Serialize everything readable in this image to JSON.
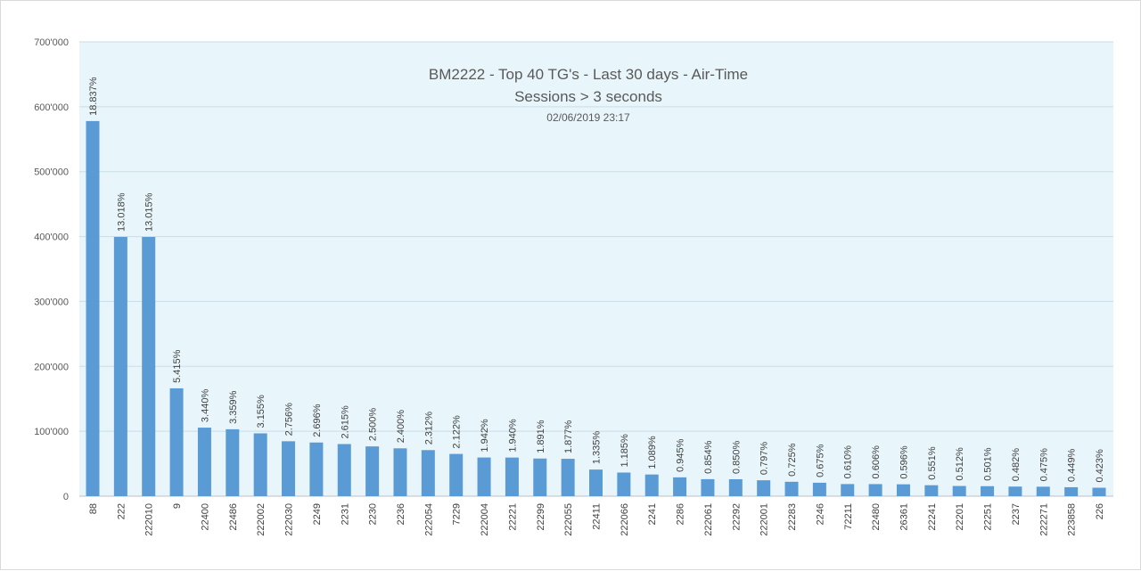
{
  "chart_data": {
    "type": "bar",
    "title": "BM2222 - Top 40 TG's - Last 30 days - Air-Time",
    "subtitle": "Sessions > 3 seconds",
    "timestamp": "02/06/2019 23:17",
    "xlabel": "",
    "ylabel": "",
    "ylim": [
      0,
      700000
    ],
    "yticks": [
      0,
      100000,
      200000,
      300000,
      400000,
      500000,
      600000,
      700000
    ],
    "ytick_labels": [
      "0",
      "100'000",
      "200'000",
      "300'000",
      "400'000",
      "500'000",
      "600'000",
      "700'000"
    ],
    "grid": true,
    "legend": "none",
    "bar_color": "#5b9bd5",
    "plot_background": "#e8f6fb",
    "categories": [
      "88",
      "222",
      "222010",
      "9",
      "22400",
      "22486",
      "222002",
      "222030",
      "2249",
      "2231",
      "2230",
      "2236",
      "222054",
      "7229",
      "222004",
      "22221",
      "22299",
      "222055",
      "22411",
      "222066",
      "2241",
      "2286",
      "222061",
      "22292",
      "222001",
      "22283",
      "2246",
      "72211",
      "22480",
      "26361",
      "22241",
      "22201",
      "22251",
      "2237",
      "222271",
      "223858",
      "226"
    ],
    "values": [
      578000,
      399500,
      399400,
      166200,
      105600,
      103100,
      96800,
      84600,
      82700,
      80300,
      76700,
      73700,
      71000,
      65100,
      59600,
      59500,
      58000,
      57600,
      41000,
      36400,
      33400,
      29000,
      26200,
      26100,
      24500,
      22200,
      20700,
      18700,
      18600,
      18300,
      16900,
      15700,
      15400,
      14800,
      14600,
      13800,
      13000
    ],
    "data_labels": [
      "18.837%",
      "13.018%",
      "13.015%",
      "5.415%",
      "3.440%",
      "3.359%",
      "3.155%",
      "2.756%",
      "2.696%",
      "2.615%",
      "2.500%",
      "2.400%",
      "2.312%",
      "2.122%",
      "1.942%",
      "1.940%",
      "1.891%",
      "1.877%",
      "1.335%",
      "1.185%",
      "1.089%",
      "0.945%",
      "0.854%",
      "0.850%",
      "0.797%",
      "0.725%",
      "0.675%",
      "0.610%",
      "0.606%",
      "0.596%",
      "0.551%",
      "0.512%",
      "0.501%",
      "0.482%",
      "0.475%",
      "0.449%",
      "0.423%"
    ]
  }
}
